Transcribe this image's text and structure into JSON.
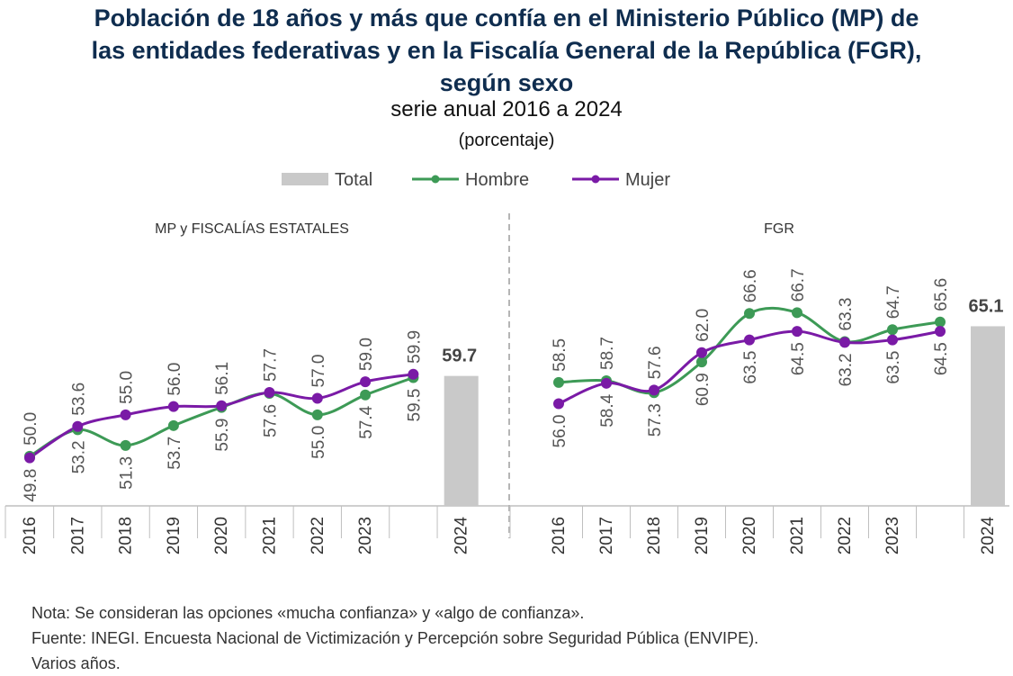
{
  "title": "Población de 18 años y más que confía en el Ministerio Público (MP) de las entidades federativas y en la Fiscalía General de la República (FGR), según sexo",
  "subtitle": "serie anual 2016 a 2024",
  "unit": "(porcentaje)",
  "notes": [
    "Nota: Se consideran las opciones «mucha confianza» y «algo de confianza».",
    "Fuente: INEGI. Encuesta Nacional de Victimización y Percepción sobre Seguridad Pública (ENVIPE).",
    "Varios años."
  ],
  "chart_data": [
    {
      "type": "line",
      "title": "MP y FISCALÍAS ESTATALES",
      "categories": [
        "2016",
        "2017",
        "2018",
        "2019",
        "2020",
        "2021",
        "2022",
        "2023",
        null,
        "2024"
      ],
      "ylim": [
        44,
        80
      ],
      "series": [
        {
          "name": "Total",
          "type": "bar",
          "color": "#c9c9c9",
          "values": [
            null,
            null,
            null,
            null,
            null,
            null,
            null,
            null,
            null,
            59.7
          ]
        },
        {
          "name": "Hombre",
          "type": "line",
          "color": "#3d9a56",
          "values": [
            50.0,
            53.2,
            51.3,
            53.7,
            55.9,
            57.6,
            55.0,
            57.4,
            59.5,
            null
          ],
          "value_labels": [
            "50.0",
            "53.2",
            "51.3",
            "53.7",
            "55.9",
            "57.6",
            "55.0",
            "57.4",
            "59.5",
            null
          ]
        },
        {
          "name": "Mujer",
          "type": "line",
          "color": "#7a1aa6",
          "values": [
            49.8,
            53.6,
            55.0,
            56.0,
            56.1,
            57.7,
            57.0,
            59.0,
            59.9,
            null
          ],
          "value_labels": [
            "49.8",
            "53.6",
            "55.0",
            "56.0",
            "56.1",
            "57.7",
            "57.0",
            "59.0",
            "59.9",
            null
          ]
        }
      ]
    },
    {
      "type": "line",
      "title": "FGR",
      "categories": [
        "2016",
        "2017",
        "2018",
        "2019",
        "2020",
        "2021",
        "2022",
        "2023",
        null,
        "2024"
      ],
      "ylim": [
        44,
        79
      ],
      "series": [
        {
          "name": "Total",
          "type": "bar",
          "color": "#c9c9c9",
          "values": [
            null,
            null,
            null,
            null,
            null,
            null,
            null,
            null,
            null,
            65.1
          ]
        },
        {
          "name": "Hombre",
          "type": "line",
          "color": "#3d9a56",
          "values": [
            58.5,
            58.7,
            57.3,
            60.9,
            66.6,
            66.7,
            63.3,
            64.7,
            65.6,
            null
          ],
          "value_labels": [
            "58.5",
            "58.7",
            "57.3",
            "60.9",
            "66.6",
            "66.7",
            "63.3",
            "64.7",
            "65.6",
            null
          ]
        },
        {
          "name": "Mujer",
          "type": "line",
          "color": "#7a1aa6",
          "values": [
            56.0,
            58.4,
            57.6,
            62.0,
            63.5,
            64.5,
            63.2,
            63.5,
            64.5,
            null
          ],
          "value_labels": [
            "56.0",
            "58.4",
            "57.6",
            "62.0",
            "63.5",
            "64.5",
            "63.2",
            "63.5",
            "64.5",
            null
          ]
        }
      ]
    }
  ]
}
